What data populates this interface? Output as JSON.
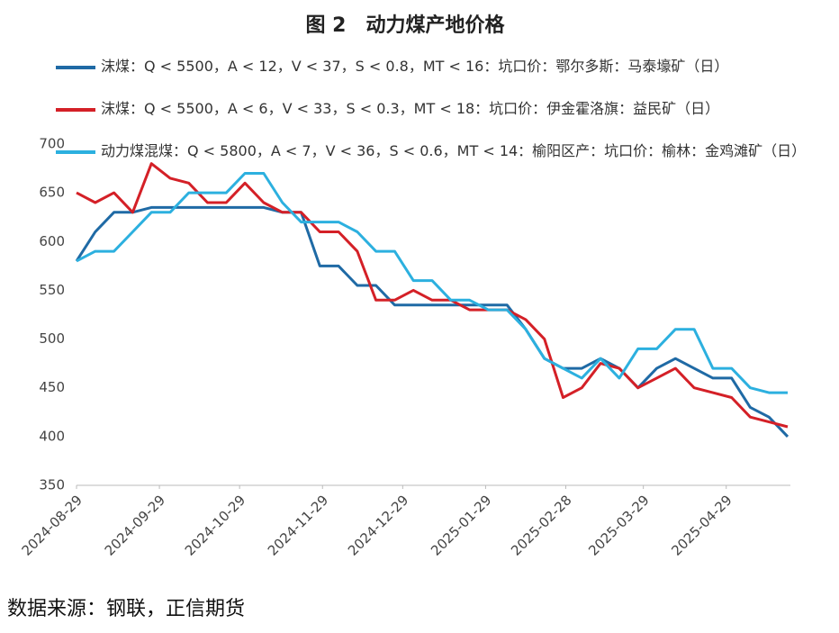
{
  "chart_data": {
    "type": "line",
    "title": "图 2　动力煤产地价格",
    "source": "数据来源：钢联，正信期货",
    "x": [
      "2024-08-29",
      "2024-09-05",
      "2024-09-12",
      "2024-09-19",
      "2024-09-26",
      "2024-10-03",
      "2024-10-10",
      "2024-10-17",
      "2024-10-24",
      "2024-10-31",
      "2024-11-07",
      "2024-11-14",
      "2024-11-21",
      "2024-11-28",
      "2024-12-05",
      "2024-12-12",
      "2024-12-19",
      "2024-12-26",
      "2025-01-02",
      "2025-01-09",
      "2025-01-16",
      "2025-01-23",
      "2025-01-30",
      "2025-02-06",
      "2025-02-13",
      "2025-02-20",
      "2025-02-27",
      "2025-03-06",
      "2025-03-13",
      "2025-03-20",
      "2025-03-27",
      "2025-04-03",
      "2025-04-10",
      "2025-04-17",
      "2025-04-24",
      "2025-05-01",
      "2025-05-08",
      "2025-05-15",
      "2025-05-22"
    ],
    "series": [
      {
        "name": "沫煤：Q < 5500，A < 12，V < 37，S < 0.8，MT < 16：坑口价：鄂尔多斯：马泰壕矿（日）",
        "color": "#1f6aa5",
        "values": [
          580,
          610,
          630,
          630,
          635,
          635,
          635,
          635,
          635,
          635,
          635,
          630,
          630,
          575,
          575,
          555,
          555,
          535,
          535,
          535,
          535,
          535,
          535,
          535,
          510,
          480,
          470,
          470,
          480,
          470,
          450,
          470,
          480,
          470,
          460,
          460,
          430,
          420,
          400
        ]
      },
      {
        "name": "沫煤：Q < 5500，A < 6，V < 33，S < 0.3，MT < 18：坑口价：伊金霍洛旗：益民矿（日）",
        "color": "#d42027",
        "values": [
          650,
          640,
          650,
          630,
          680,
          665,
          660,
          640,
          640,
          660,
          640,
          630,
          630,
          610,
          610,
          590,
          540,
          540,
          550,
          540,
          540,
          530,
          530,
          530,
          520,
          500,
          440,
          450,
          475,
          470,
          450,
          460,
          470,
          450,
          445,
          440,
          420,
          415,
          410
        ]
      },
      {
        "name": "动力煤混煤：Q < 5800，A < 7，V < 36，S < 0.6，MT < 14：榆阳区产：坑口价：榆林：金鸡滩矿（日）",
        "color": "#2cb0df",
        "values": [
          580,
          590,
          590,
          610,
          630,
          630,
          650,
          650,
          650,
          670,
          670,
          640,
          620,
          620,
          620,
          610,
          590,
          590,
          560,
          560,
          540,
          540,
          530,
          530,
          510,
          480,
          470,
          460,
          480,
          460,
          490,
          490,
          510,
          510,
          470,
          470,
          450,
          445,
          445
        ]
      }
    ],
    "xlim": [
      "2024-08-29",
      "2025-05-23"
    ],
    "xticks": [
      "2024-08-29",
      "2024-09-29",
      "2024-10-29",
      "2024-11-29",
      "2024-12-29",
      "2025-01-29",
      "2025-02-28",
      "2025-03-29",
      "2025-04-29"
    ],
    "ylim": [
      350,
      700
    ],
    "yticks": [
      350,
      400,
      450,
      500,
      550,
      600,
      650,
      700
    ]
  }
}
